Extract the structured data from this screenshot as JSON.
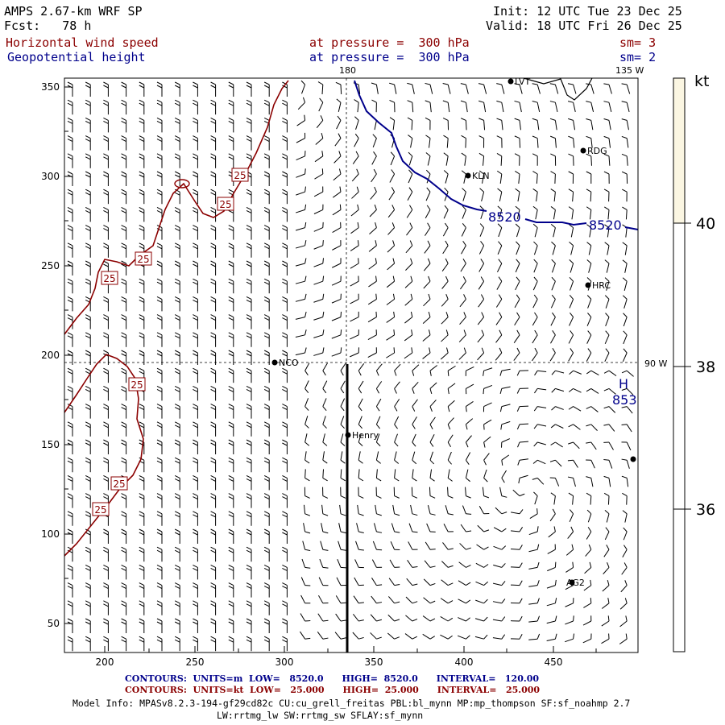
{
  "header": {
    "model": "AMPS 2.67-km WRF SP",
    "fcst": "Fcst:   78 h",
    "init": "Init: 12 UTC Tue 23 Dec 25",
    "valid": "Valid: 18 UTC Fri 26 Dec 25"
  },
  "fields": [
    {
      "name": "Horizontal wind speed",
      "level": "at pressure =  300 hPa",
      "smooth": "sm= 3"
    },
    {
      "name": "Geopotential height",
      "level": "at pressure =  300 hPa",
      "smooth": "sm= 2"
    }
  ],
  "map": {
    "x_ticks": [
      "200",
      "250",
      "300",
      "350",
      "400",
      "450"
    ],
    "y_ticks": [
      "350",
      "300",
      "250",
      "200",
      "150",
      "100",
      "50"
    ],
    "meridian_labels": {
      "top": "180",
      "top_right": "135 W",
      "right": "90 W"
    },
    "stations": [
      "LVT",
      "RDG",
      "KLN",
      "HRC",
      "NCO",
      "Henry",
      "AG2"
    ],
    "height_contour_labels": [
      "8520",
      "8520"
    ],
    "high_marker": {
      "letter": "H",
      "value": "853"
    },
    "wind_contour_label": "25"
  },
  "colorbar": {
    "unit": "kt",
    "labels": [
      "40",
      "38",
      "36"
    ],
    "colors": {
      "top": "#fbf6e2",
      "rest": "#ffffff"
    }
  },
  "footer": {
    "contours_height": "CONTOURS:  UNITS=m  LOW=   8520.0      HIGH=  8520.0      INTERVAL=   120.00",
    "contours_wind": "CONTOURS:  UNITS=kt  LOW=   25.000      HIGH=  25.000      INTERVAL=   25.000",
    "model_info": "Model Info: MPASv8.2.3-194-gf29cd82c CU:cu_grell_freitas PBL:bl_mynn MP:mp_thompson SF:sf_noahmp 2.7",
    "model_info2": "LW:rrtmg_lw SW:rrtmg_sw SFLAY:sf_mynn"
  },
  "colors": {
    "red": "#8b0000",
    "blue": "#00008b"
  }
}
